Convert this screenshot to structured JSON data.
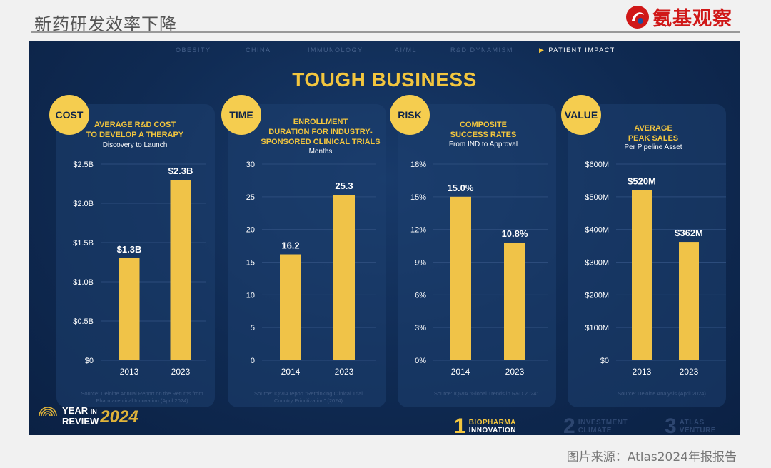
{
  "header": {
    "title": "新药研发效率下降",
    "brand": "氨基观察"
  },
  "nav": {
    "items": [
      "OBESITY",
      "CHINA",
      "IMMUNOLOGY",
      "AI/ML",
      "R&D DYNAMISM",
      "PATIENT IMPACT"
    ],
    "active_marker": "▶"
  },
  "slide": {
    "heading": "TOUGH BUSINESS"
  },
  "colors": {
    "bar": "#f0c348",
    "accent": "#f3c63e",
    "badge": "#f5cd4f",
    "slide_bg": "#0f2a52",
    "brand_red": "#d01818"
  },
  "panels": [
    {
      "badge": "COST",
      "title_lines": [
        "AVERAGE R&D COST",
        "TO DEVELOP A THERAPY"
      ],
      "subtitle": "Discovery to Launch",
      "source": "Source: Deloitte Annual Report on the Returns from Pharmaceutical Innovation (April 2024)"
    },
    {
      "badge": "TIME",
      "title_lines": [
        "ENROLLMENT",
        "DURATION FOR INDUSTRY-",
        "SPONSORED CLINICAL TRIALS"
      ],
      "subtitle": "Months",
      "source": "Source: IQVIA report \"Rethinking Clinical Trial Country Prioritization\" (2024)"
    },
    {
      "badge": "RISK",
      "title_lines": [
        "COMPOSITE",
        "SUCCESS RATES"
      ],
      "subtitle": "From IND to Approval",
      "source": "Source: IQVIA \"Global Trends in R&D 2024\""
    },
    {
      "badge": "VALUE",
      "title_lines": [
        "AVERAGE",
        "PEAK SALES"
      ],
      "subtitle": "Per Pipeline Asset",
      "source": "Source: Deloitte Analysis (April 2024)"
    }
  ],
  "chart_data": [
    {
      "type": "bar",
      "title": "AVERAGE R&D COST TO DEVELOP A THERAPY",
      "subtitle": "Discovery to Launch",
      "categories": [
        "2013",
        "2023"
      ],
      "values": [
        1.3,
        2.3
      ],
      "value_labels": [
        "$1.3B",
        "$2.3B"
      ],
      "yticks": [
        0,
        0.5,
        1.0,
        1.5,
        2.0,
        2.5
      ],
      "ytick_labels": [
        "$0",
        "$0.5B",
        "$1.0B",
        "$1.5B",
        "$2.0B",
        "$2.5B"
      ],
      "ylim": [
        0,
        2.5
      ],
      "unit": "USD billions",
      "grid": true
    },
    {
      "type": "bar",
      "title": "ENROLLMENT DURATION FOR INDUSTRY-SPONSORED CLINICAL TRIALS",
      "subtitle": "Months",
      "categories": [
        "2014",
        "2023"
      ],
      "values": [
        16.2,
        25.3
      ],
      "value_labels": [
        "16.2",
        "25.3"
      ],
      "yticks": [
        0,
        5,
        10,
        15,
        20,
        25,
        30
      ],
      "ytick_labels": [
        "0",
        "5",
        "10",
        "15",
        "20",
        "25",
        "30"
      ],
      "ylim": [
        0,
        30
      ],
      "unit": "months",
      "grid": true
    },
    {
      "type": "bar",
      "title": "COMPOSITE SUCCESS RATES",
      "subtitle": "From IND to Approval",
      "categories": [
        "2014",
        "2023"
      ],
      "values": [
        15.0,
        10.8
      ],
      "value_labels": [
        "15.0%",
        "10.8%"
      ],
      "yticks": [
        0,
        3,
        6,
        9,
        12,
        15,
        18
      ],
      "ytick_labels": [
        "0%",
        "3%",
        "6%",
        "9%",
        "12%",
        "15%",
        "18%"
      ],
      "ylim": [
        0,
        18
      ],
      "unit": "percent",
      "grid": true
    },
    {
      "type": "bar",
      "title": "AVERAGE PEAK SALES",
      "subtitle": "Per Pipeline Asset",
      "categories": [
        "2013",
        "2023"
      ],
      "values": [
        520,
        362
      ],
      "value_labels": [
        "$520M",
        "$362M"
      ],
      "yticks": [
        0,
        100,
        200,
        300,
        400,
        500,
        600
      ],
      "ytick_labels": [
        "$0",
        "$100M",
        "$200M",
        "$300M",
        "$400M",
        "$500M",
        "$600M"
      ],
      "ylim": [
        0,
        600
      ],
      "unit": "USD millions",
      "grid": true
    }
  ],
  "footer": {
    "year_in_review": [
      "YEAR",
      "IN",
      "REVIEW"
    ],
    "year": "2024",
    "tabs": [
      {
        "num": "1",
        "label_lines": [
          "BIOPHARMA",
          "INNOVATION"
        ]
      },
      {
        "num": "2",
        "label_lines": [
          "INVESTMENT",
          "CLIMATE"
        ]
      },
      {
        "num": "3",
        "label_lines": [
          "ATLAS",
          "VENTURE"
        ]
      }
    ]
  },
  "credit": "图片来源：Atlas2024年报报告"
}
